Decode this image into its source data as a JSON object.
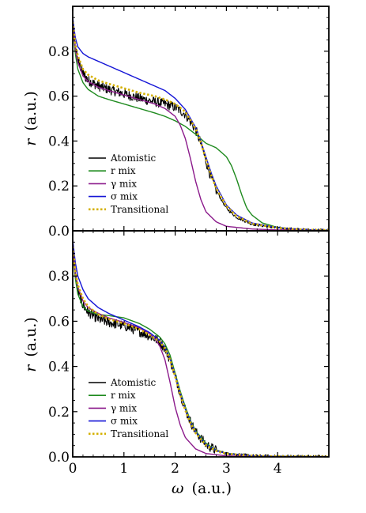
{
  "figure": {
    "xlabel_symbol": "ω",
    "xlabel_unit": "(a.u.)",
    "ylabel_symbol": "r",
    "ylabel_unit": "(a.u.)"
  },
  "chart_data": [
    {
      "type": "line",
      "title": "",
      "xlabel": "ω (a.u.)",
      "ylabel": "r (a.u.)",
      "xlim": [
        0,
        5
      ],
      "ylim": [
        0,
        1.0
      ],
      "x_ticks": [
        "0",
        "1",
        "2",
        "3",
        "4"
      ],
      "y_ticks": [
        "0.0",
        "0.2",
        "0.4",
        "0.6",
        "0.8"
      ],
      "grid": false,
      "legend": "lower-left",
      "series": [
        {
          "name": "Atomistic",
          "color": "#000000",
          "style": "solid",
          "noisy": true,
          "x": [
            0,
            0.05,
            0.1,
            0.2,
            0.3,
            0.5,
            0.7,
            1.0,
            1.3,
            1.6,
            1.8,
            2.0,
            2.2,
            2.4,
            2.5,
            2.6,
            2.7,
            2.8,
            3.0,
            3.2,
            3.5,
            4.0,
            4.5,
            5.0
          ],
          "y": [
            0.93,
            0.82,
            0.76,
            0.7,
            0.67,
            0.645,
            0.63,
            0.61,
            0.59,
            0.575,
            0.565,
            0.55,
            0.52,
            0.45,
            0.39,
            0.31,
            0.24,
            0.18,
            0.1,
            0.06,
            0.03,
            0.012,
            0.005,
            0.002
          ]
        },
        {
          "name": "r mix",
          "color": "#1e8a1e",
          "style": "solid",
          "noisy": false,
          "x": [
            0,
            0.05,
            0.1,
            0.2,
            0.3,
            0.5,
            0.7,
            1.0,
            1.3,
            1.6,
            1.8,
            2.0,
            2.2,
            2.4,
            2.6,
            2.8,
            3.0,
            3.1,
            3.2,
            3.3,
            3.4,
            3.5,
            3.7,
            4.0,
            4.5,
            5.0
          ],
          "y": [
            0.92,
            0.79,
            0.72,
            0.66,
            0.63,
            0.6,
            0.585,
            0.565,
            0.545,
            0.525,
            0.51,
            0.49,
            0.465,
            0.43,
            0.39,
            0.37,
            0.33,
            0.29,
            0.23,
            0.16,
            0.1,
            0.07,
            0.035,
            0.015,
            0.005,
            0.002
          ]
        },
        {
          "name": "γ mix",
          "color": "#8b1a8b",
          "style": "solid",
          "noisy": false,
          "x": [
            0,
            0.05,
            0.1,
            0.2,
            0.3,
            0.5,
            0.7,
            1.0,
            1.3,
            1.6,
            1.8,
            2.0,
            2.1,
            2.2,
            2.3,
            2.4,
            2.5,
            2.6,
            2.8,
            3.0,
            3.5,
            4.0,
            5.0
          ],
          "y": [
            0.93,
            0.81,
            0.75,
            0.69,
            0.665,
            0.64,
            0.625,
            0.605,
            0.585,
            0.565,
            0.545,
            0.51,
            0.47,
            0.41,
            0.32,
            0.22,
            0.14,
            0.085,
            0.04,
            0.02,
            0.008,
            0.004,
            0.001
          ]
        },
        {
          "name": "σ mix",
          "color": "#1515d6",
          "style": "solid",
          "noisy": false,
          "x": [
            0,
            0.05,
            0.1,
            0.2,
            0.3,
            0.5,
            0.7,
            1.0,
            1.3,
            1.6,
            1.8,
            2.0,
            2.2,
            2.4,
            2.5,
            2.6,
            2.7,
            2.8,
            3.0,
            3.2,
            3.5,
            4.0,
            4.5,
            5.0
          ],
          "y": [
            0.95,
            0.86,
            0.82,
            0.79,
            0.775,
            0.755,
            0.735,
            0.705,
            0.675,
            0.645,
            0.625,
            0.59,
            0.54,
            0.46,
            0.4,
            0.33,
            0.26,
            0.2,
            0.115,
            0.07,
            0.035,
            0.014,
            0.006,
            0.002
          ]
        },
        {
          "name": "Transitional",
          "color": "#d4b000",
          "style": "dotted",
          "noisy": false,
          "x": [
            0,
            0.05,
            0.1,
            0.2,
            0.3,
            0.5,
            0.7,
            1.0,
            1.3,
            1.6,
            1.8,
            2.0,
            2.2,
            2.4,
            2.5,
            2.6,
            2.7,
            2.8,
            3.0,
            3.2,
            3.5,
            4.0,
            4.5,
            5.0
          ],
          "y": [
            0.93,
            0.83,
            0.78,
            0.72,
            0.695,
            0.67,
            0.655,
            0.635,
            0.615,
            0.6,
            0.585,
            0.565,
            0.53,
            0.455,
            0.395,
            0.32,
            0.25,
            0.19,
            0.11,
            0.065,
            0.032,
            0.013,
            0.005,
            0.002
          ]
        }
      ]
    },
    {
      "type": "line",
      "title": "",
      "xlabel": "ω (a.u.)",
      "ylabel": "r (a.u.)",
      "xlim": [
        0,
        5
      ],
      "ylim": [
        0,
        1.0
      ],
      "x_ticks": [
        "0",
        "1",
        "2",
        "3",
        "4"
      ],
      "y_ticks": [
        "0.0",
        "0.2",
        "0.4",
        "0.6",
        "0.8"
      ],
      "grid": false,
      "legend": "lower-left",
      "series": [
        {
          "name": "Atomistic",
          "color": "#000000",
          "style": "solid",
          "noisy": true,
          "x": [
            0,
            0.05,
            0.1,
            0.2,
            0.3,
            0.5,
            0.7,
            1.0,
            1.3,
            1.5,
            1.7,
            1.8,
            1.9,
            2.0,
            2.1,
            2.2,
            2.3,
            2.4,
            2.6,
            2.8,
            3.0,
            3.5,
            4.0,
            5.0
          ],
          "y": [
            0.93,
            0.81,
            0.74,
            0.67,
            0.64,
            0.61,
            0.595,
            0.58,
            0.555,
            0.535,
            0.51,
            0.48,
            0.43,
            0.36,
            0.28,
            0.21,
            0.155,
            0.11,
            0.055,
            0.028,
            0.015,
            0.005,
            0.002,
            0.001
          ]
        },
        {
          "name": "r mix",
          "color": "#1e8a1e",
          "style": "solid",
          "noisy": false,
          "x": [
            0,
            0.05,
            0.1,
            0.2,
            0.3,
            0.5,
            0.7,
            1.0,
            1.3,
            1.5,
            1.7,
            1.8,
            1.9,
            2.0,
            2.1,
            2.2,
            2.3,
            2.4,
            2.6,
            2.8,
            3.0,
            3.5,
            4.0,
            5.0
          ],
          "y": [
            0.92,
            0.79,
            0.72,
            0.665,
            0.645,
            0.63,
            0.625,
            0.615,
            0.59,
            0.565,
            0.53,
            0.5,
            0.45,
            0.37,
            0.29,
            0.22,
            0.16,
            0.115,
            0.06,
            0.03,
            0.016,
            0.005,
            0.002,
            0.001
          ]
        },
        {
          "name": "γ mix",
          "color": "#8b1a8b",
          "style": "solid",
          "noisy": false,
          "x": [
            0,
            0.05,
            0.1,
            0.2,
            0.3,
            0.5,
            0.7,
            1.0,
            1.3,
            1.5,
            1.6,
            1.7,
            1.8,
            1.9,
            2.0,
            2.1,
            2.2,
            2.4,
            2.6,
            3.0,
            3.5,
            4.0,
            5.0
          ],
          "y": [
            0.93,
            0.81,
            0.75,
            0.69,
            0.66,
            0.635,
            0.615,
            0.595,
            0.57,
            0.545,
            0.525,
            0.49,
            0.43,
            0.33,
            0.22,
            0.14,
            0.085,
            0.035,
            0.015,
            0.004,
            0.002,
            0.001,
            0.0005
          ]
        },
        {
          "name": "σ mix",
          "color": "#1515d6",
          "style": "solid",
          "noisy": false,
          "x": [
            0,
            0.05,
            0.1,
            0.2,
            0.3,
            0.5,
            0.7,
            1.0,
            1.3,
            1.5,
            1.7,
            1.8,
            1.9,
            2.0,
            2.1,
            2.2,
            2.3,
            2.4,
            2.6,
            2.8,
            3.0,
            3.5,
            4.0,
            5.0
          ],
          "y": [
            0.96,
            0.86,
            0.8,
            0.74,
            0.7,
            0.66,
            0.635,
            0.605,
            0.575,
            0.55,
            0.515,
            0.485,
            0.435,
            0.36,
            0.28,
            0.21,
            0.155,
            0.11,
            0.055,
            0.028,
            0.015,
            0.005,
            0.002,
            0.001
          ]
        },
        {
          "name": "Transitional",
          "color": "#d4b000",
          "style": "dotted",
          "noisy": false,
          "x": [
            0,
            0.05,
            0.1,
            0.2,
            0.3,
            0.5,
            0.7,
            1.0,
            1.3,
            1.5,
            1.7,
            1.8,
            1.9,
            2.0,
            2.1,
            2.2,
            2.3,
            2.4,
            2.6,
            2.8,
            3.0,
            3.5,
            4.0,
            5.0
          ],
          "y": [
            0.93,
            0.82,
            0.76,
            0.7,
            0.665,
            0.63,
            0.61,
            0.59,
            0.565,
            0.54,
            0.51,
            0.48,
            0.43,
            0.355,
            0.275,
            0.205,
            0.15,
            0.105,
            0.052,
            0.027,
            0.014,
            0.005,
            0.002,
            0.001
          ]
        }
      ]
    }
  ]
}
